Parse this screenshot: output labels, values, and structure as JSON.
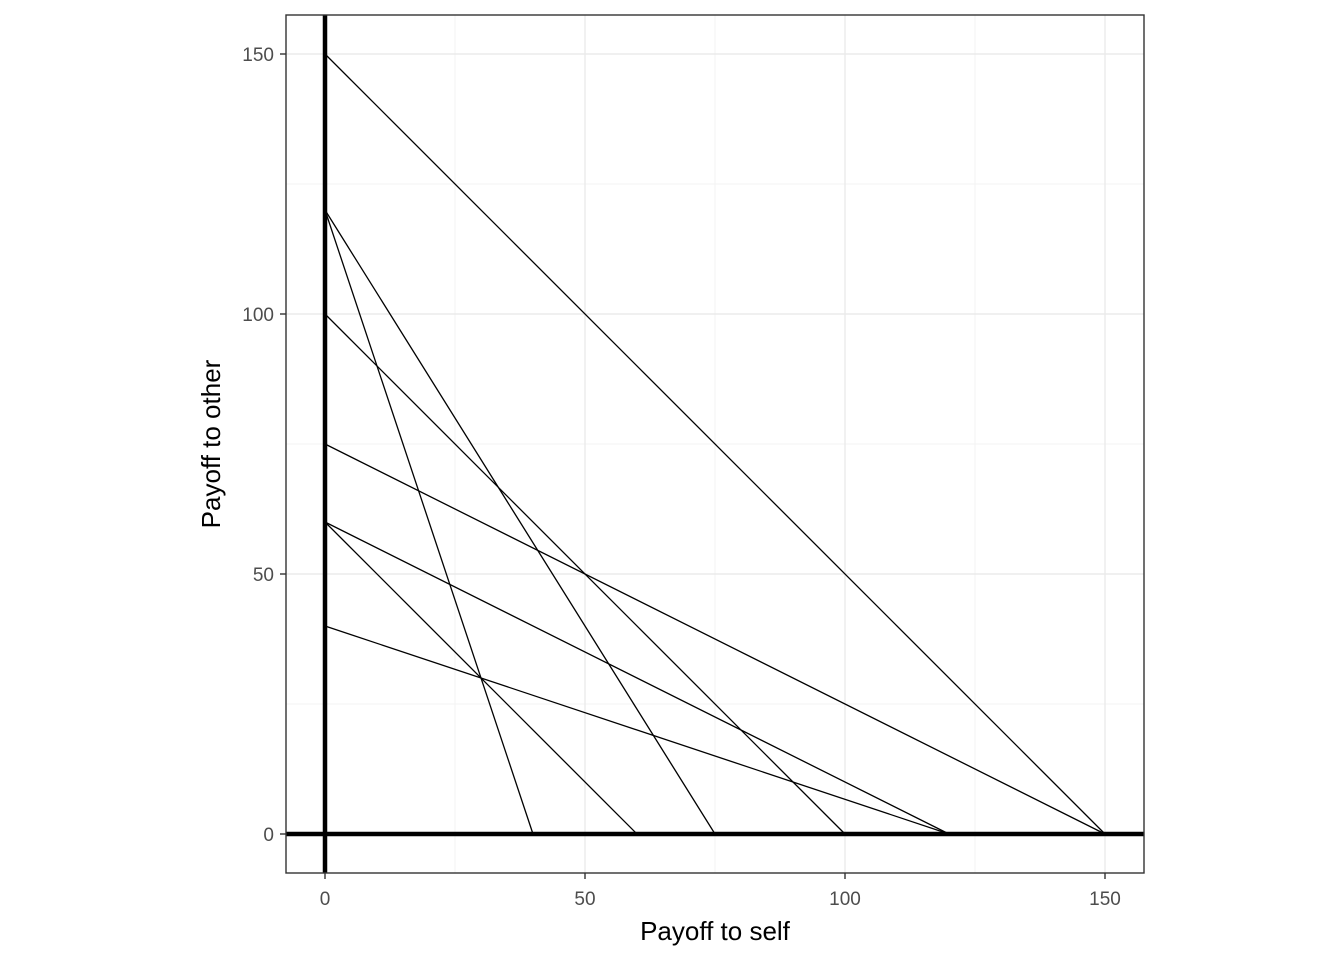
{
  "chart_data": {
    "type": "line",
    "title": "",
    "xlabel": "Payoff to self",
    "ylabel": "Payoff to other",
    "xlim": [
      -7.5,
      157.5
    ],
    "ylim": [
      -7.5,
      157.5
    ],
    "x_ticks": [
      0,
      50,
      100,
      150
    ],
    "y_ticks": [
      0,
      50,
      100,
      150
    ],
    "x_tick_labels": [
      "0",
      "50",
      "100",
      "150"
    ],
    "y_tick_labels": [
      "0",
      "50",
      "100",
      "150"
    ],
    "grid": true,
    "legend": "none",
    "reference_lines": [
      {
        "axis": "x",
        "value": 0
      },
      {
        "axis": "y",
        "value": 0
      }
    ],
    "series": [
      {
        "x": [
          0,
          150
        ],
        "y": [
          150,
          0
        ]
      },
      {
        "x": [
          0,
          75
        ],
        "y": [
          120,
          0
        ]
      },
      {
        "x": [
          0,
          40
        ],
        "y": [
          120,
          0
        ]
      },
      {
        "x": [
          0,
          100
        ],
        "y": [
          100,
          0
        ]
      },
      {
        "x": [
          0,
          150
        ],
        "y": [
          75,
          0
        ]
      },
      {
        "x": [
          0,
          120
        ],
        "y": [
          60,
          0
        ]
      },
      {
        "x": [
          0,
          60
        ],
        "y": [
          60,
          0
        ]
      },
      {
        "x": [
          0,
          120
        ],
        "y": [
          40,
          0
        ]
      }
    ]
  }
}
